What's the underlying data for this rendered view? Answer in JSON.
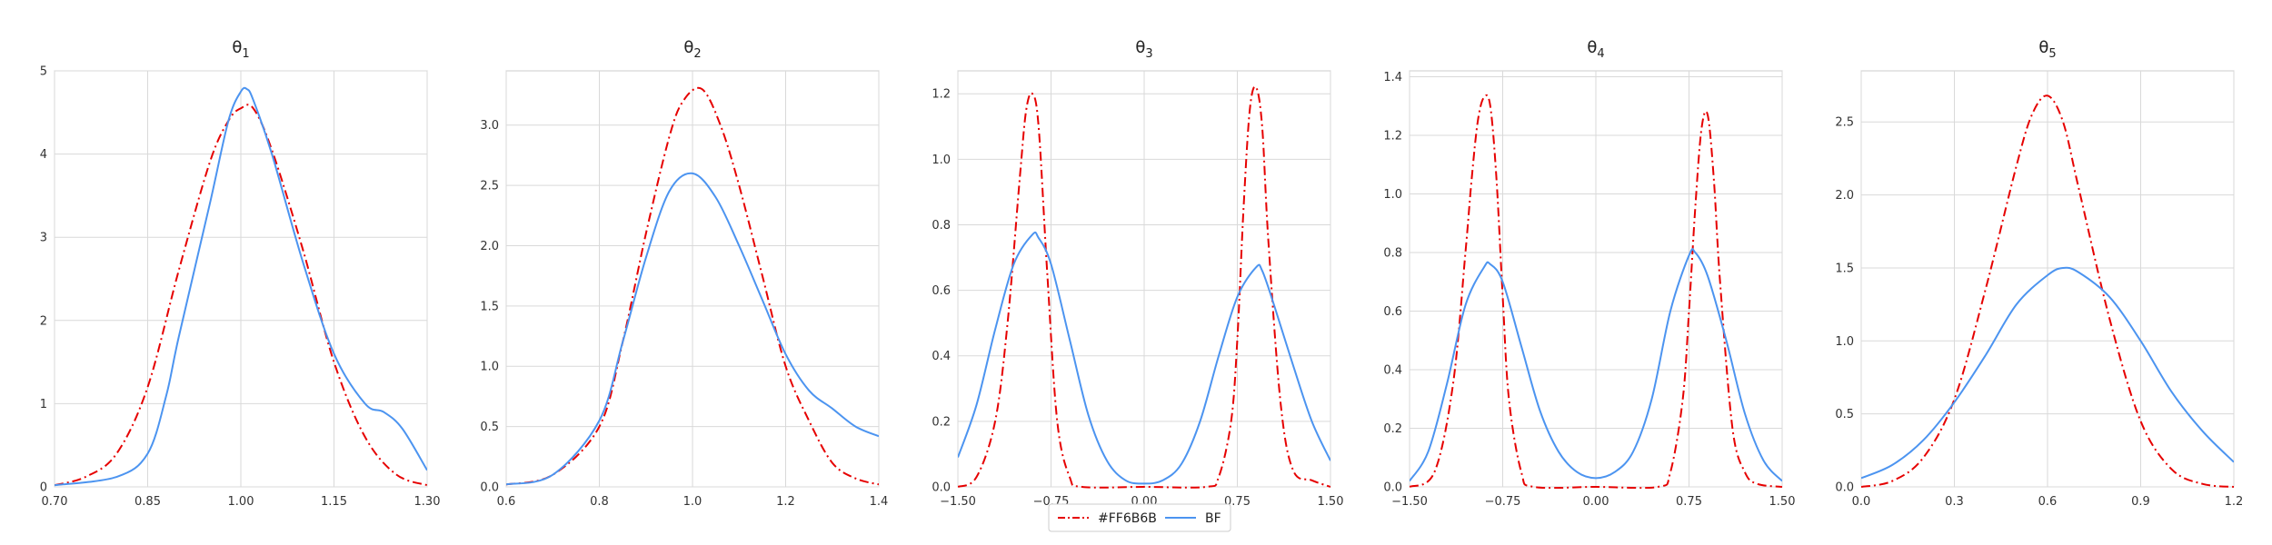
{
  "chart_data": [
    {
      "type": "line",
      "title": "θ",
      "title_sub": "1",
      "xlim": [
        0.7,
        1.3
      ],
      "ylim": [
        0,
        5
      ],
      "xticks": [
        "0.70",
        "0.85",
        "1.00",
        "1.15",
        "1.30"
      ],
      "yticks": [
        "0",
        "1",
        "2",
        "3",
        "4",
        "5"
      ],
      "grid": true,
      "series": [
        {
          "name": "#FF6B6B",
          "color": "#e60000",
          "style": "dashdot",
          "x": [
            0.7,
            0.75,
            0.8,
            0.85,
            0.9,
            0.95,
            0.98,
            1.0,
            1.02,
            1.05,
            1.1,
            1.15,
            1.2,
            1.25,
            1.3
          ],
          "y": [
            0.02,
            0.12,
            0.4,
            1.2,
            2.6,
            3.9,
            4.4,
            4.55,
            4.55,
            4.05,
            2.85,
            1.5,
            0.6,
            0.15,
            0.02
          ]
        },
        {
          "name": "BF",
          "color": "#4c94f0",
          "style": "solid",
          "x": [
            0.7,
            0.8,
            0.85,
            0.88,
            0.9,
            0.95,
            0.98,
            1.0,
            1.01,
            1.02,
            1.05,
            1.1,
            1.15,
            1.2,
            1.23,
            1.26,
            1.3
          ],
          "y": [
            0.02,
            0.12,
            0.4,
            1.1,
            1.8,
            3.4,
            4.4,
            4.75,
            4.78,
            4.65,
            4.0,
            2.7,
            1.6,
            1.0,
            0.9,
            0.7,
            0.2
          ]
        }
      ]
    },
    {
      "type": "line",
      "title": "θ",
      "title_sub": "2",
      "xlim": [
        0.6,
        1.4
      ],
      "ylim": [
        0,
        3.45
      ],
      "xticks": [
        "0.6",
        "0.8",
        "1.0",
        "1.2",
        "1.4"
      ],
      "yticks": [
        "0.0",
        "0.5",
        "1.0",
        "1.5",
        "2.0",
        "2.5",
        "3.0"
      ],
      "grid": true,
      "series": [
        {
          "name": "#FF6B6B",
          "color": "#e60000",
          "style": "dashdot",
          "x": [
            0.6,
            0.7,
            0.8,
            0.85,
            0.9,
            0.95,
            0.98,
            1.02,
            1.06,
            1.1,
            1.15,
            1.2,
            1.25,
            1.3,
            1.35,
            1.4
          ],
          "y": [
            0.02,
            0.1,
            0.5,
            1.2,
            2.1,
            2.9,
            3.2,
            3.3,
            3.0,
            2.5,
            1.75,
            1.0,
            0.55,
            0.2,
            0.07,
            0.02
          ]
        },
        {
          "name": "BF",
          "color": "#4c94f0",
          "style": "solid",
          "x": [
            0.6,
            0.7,
            0.8,
            0.85,
            0.9,
            0.95,
            1.0,
            1.05,
            1.1,
            1.15,
            1.2,
            1.25,
            1.3,
            1.35,
            1.4
          ],
          "y": [
            0.02,
            0.1,
            0.55,
            1.2,
            1.9,
            2.45,
            2.6,
            2.4,
            2.0,
            1.55,
            1.1,
            0.8,
            0.65,
            0.5,
            0.42
          ]
        }
      ]
    },
    {
      "type": "line",
      "title": "θ",
      "title_sub": "3",
      "xlim": [
        -1.5,
        1.5
      ],
      "ylim": [
        0,
        1.27
      ],
      "xticks": [
        "−1.50",
        "−0.75",
        "0.00",
        "0.75",
        "1.50"
      ],
      "yticks": [
        "0.0",
        "0.2",
        "0.4",
        "0.6",
        "0.8",
        "1.0",
        "1.2"
      ],
      "grid": true,
      "series": [
        {
          "name": "#FF6B6B",
          "color": "#e60000",
          "style": "dashdot",
          "x": [
            -1.5,
            -1.35,
            -1.2,
            -1.1,
            -1.0,
            -0.95,
            -0.9,
            -0.85,
            -0.78,
            -0.7,
            -0.6,
            -0.5,
            0.0,
            0.5,
            0.6,
            0.7,
            0.75,
            0.8,
            0.85,
            0.9,
            0.95,
            1.0,
            1.1,
            1.2,
            1.35,
            1.5
          ],
          "y": [
            0.0,
            0.03,
            0.2,
            0.5,
            0.95,
            1.15,
            1.2,
            1.1,
            0.65,
            0.2,
            0.03,
            0.0,
            0.0,
            0.0,
            0.03,
            0.2,
            0.45,
            0.85,
            1.15,
            1.22,
            1.1,
            0.75,
            0.25,
            0.05,
            0.02,
            0.0
          ]
        },
        {
          "name": "BF",
          "color": "#4c94f0",
          "style": "solid",
          "x": [
            -1.5,
            -1.35,
            -1.2,
            -1.05,
            -0.9,
            -0.85,
            -0.75,
            -0.6,
            -0.45,
            -0.3,
            -0.15,
            0.0,
            0.15,
            0.3,
            0.45,
            0.6,
            0.75,
            0.9,
            0.95,
            1.05,
            1.2,
            1.35,
            1.5
          ],
          "y": [
            0.09,
            0.25,
            0.48,
            0.68,
            0.77,
            0.76,
            0.68,
            0.45,
            0.22,
            0.08,
            0.02,
            0.01,
            0.02,
            0.07,
            0.2,
            0.4,
            0.58,
            0.67,
            0.66,
            0.55,
            0.37,
            0.2,
            0.08
          ]
        }
      ]
    },
    {
      "type": "line",
      "title": "θ",
      "title_sub": "4",
      "xlim": [
        -1.5,
        1.5
      ],
      "ylim": [
        0,
        1.42
      ],
      "xticks": [
        "−1.50",
        "−0.75",
        "0.00",
        "0.75",
        "1.50"
      ],
      "yticks": [
        "0.0",
        "0.2",
        "0.4",
        "0.6",
        "0.8",
        "1.0",
        "1.2",
        "1.4"
      ],
      "grid": true,
      "series": [
        {
          "name": "#FF6B6B",
          "color": "#e60000",
          "style": "dashdot",
          "x": [
            -1.5,
            -1.3,
            -1.15,
            -1.05,
            -1.0,
            -0.95,
            -0.9,
            -0.85,
            -0.8,
            -0.75,
            -0.7,
            -0.6,
            -0.5,
            0.0,
            0.5,
            0.6,
            0.7,
            0.75,
            0.8,
            0.85,
            0.9,
            0.95,
            1.0,
            1.1,
            1.2,
            1.3,
            1.5
          ],
          "y": [
            0.0,
            0.05,
            0.35,
            0.8,
            1.05,
            1.25,
            1.33,
            1.3,
            1.05,
            0.65,
            0.3,
            0.05,
            0.0,
            0.0,
            0.0,
            0.05,
            0.3,
            0.6,
            0.95,
            1.22,
            1.27,
            1.05,
            0.7,
            0.2,
            0.05,
            0.01,
            0.0
          ]
        },
        {
          "name": "BF",
          "color": "#4c94f0",
          "style": "solid",
          "x": [
            -1.5,
            -1.35,
            -1.2,
            -1.05,
            -0.9,
            -0.85,
            -0.75,
            -0.6,
            -0.45,
            -0.3,
            -0.15,
            0.0,
            0.15,
            0.3,
            0.45,
            0.6,
            0.75,
            0.8,
            0.9,
            1.05,
            1.2,
            1.35,
            1.5
          ],
          "y": [
            0.02,
            0.12,
            0.35,
            0.62,
            0.75,
            0.76,
            0.7,
            0.48,
            0.26,
            0.12,
            0.05,
            0.03,
            0.05,
            0.12,
            0.3,
            0.6,
            0.79,
            0.8,
            0.72,
            0.5,
            0.25,
            0.09,
            0.02
          ]
        }
      ]
    },
    {
      "type": "line",
      "title": "θ",
      "title_sub": "5",
      "xlim": [
        0.0,
        1.2
      ],
      "ylim": [
        0,
        2.85
      ],
      "xticks": [
        "0.0",
        "0.3",
        "0.6",
        "0.9",
        "1.2"
      ],
      "yticks": [
        "0.0",
        "0.5",
        "1.0",
        "1.5",
        "2.0",
        "2.5"
      ],
      "grid": true,
      "series": [
        {
          "name": "#FF6B6B",
          "color": "#e60000",
          "style": "dashdot",
          "x": [
            0.0,
            0.1,
            0.2,
            0.3,
            0.4,
            0.5,
            0.55,
            0.6,
            0.65,
            0.7,
            0.8,
            0.9,
            1.0,
            1.1,
            1.2
          ],
          "y": [
            0.0,
            0.04,
            0.2,
            0.6,
            1.35,
            2.2,
            2.55,
            2.68,
            2.5,
            2.05,
            1.15,
            0.45,
            0.12,
            0.02,
            0.0
          ]
        },
        {
          "name": "BF",
          "color": "#4c94f0",
          "style": "solid",
          "x": [
            0.0,
            0.1,
            0.2,
            0.3,
            0.4,
            0.5,
            0.6,
            0.65,
            0.7,
            0.8,
            0.9,
            1.0,
            1.1,
            1.2
          ],
          "y": [
            0.06,
            0.15,
            0.32,
            0.58,
            0.9,
            1.25,
            1.45,
            1.5,
            1.47,
            1.3,
            1.0,
            0.65,
            0.38,
            0.17
          ]
        }
      ]
    }
  ],
  "legend": {
    "placement": "bottom-center",
    "items": [
      {
        "label": "#FF6B6B",
        "color": "#e60000",
        "style": "dashdot"
      },
      {
        "label": "BF",
        "color": "#4c94f0",
        "style": "solid"
      }
    ]
  },
  "colors": {
    "grid": "#d9d9d9",
    "axis": "#cccccc",
    "text": "#333333"
  }
}
